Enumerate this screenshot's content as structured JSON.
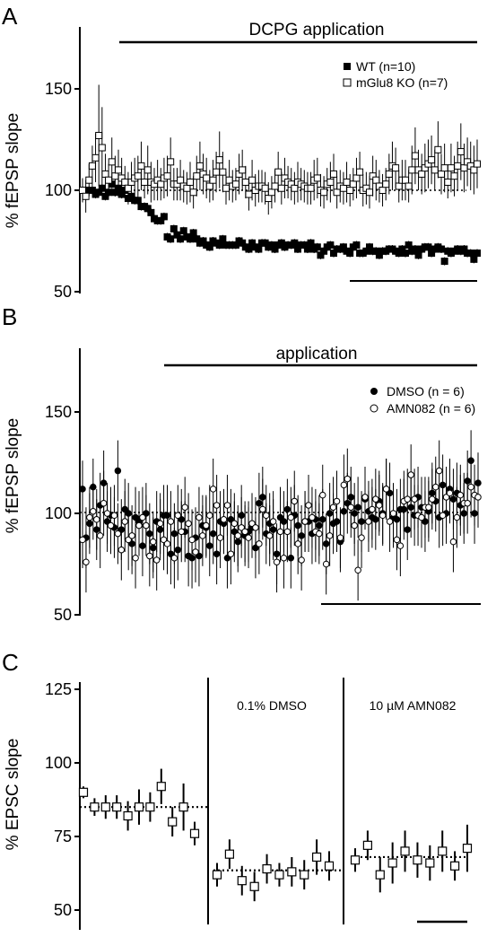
{
  "chart_data": [
    {
      "panel": "A",
      "type": "scatter",
      "ylabel": "% fEPSP slope",
      "ylim": [
        50,
        180
      ],
      "yticks": [
        50,
        100,
        150
      ],
      "annotation": "DCPG application",
      "baseline": 100,
      "legend_placement": "top-right",
      "series": [
        {
          "name": "WT (n=10)",
          "marker": "filled-square",
          "color": "#000000",
          "y": [
            100,
            100,
            100,
            100,
            98,
            99,
            101,
            97,
            99,
            103,
            99,
            101,
            98,
            100,
            96,
            97,
            95,
            95,
            92,
            92,
            91,
            89,
            86,
            85,
            85,
            87,
            77,
            76,
            81,
            78,
            76,
            80,
            77,
            76,
            79,
            76,
            74,
            75,
            73,
            72,
            75,
            74,
            73,
            76,
            73,
            73,
            73,
            73,
            75,
            74,
            72,
            71,
            74,
            72,
            71,
            74,
            74,
            72,
            73,
            71,
            73,
            74,
            72,
            73,
            73,
            74,
            71,
            73,
            73,
            71,
            74,
            71,
            72,
            68,
            70,
            72,
            73,
            69,
            71,
            71,
            72,
            70,
            69,
            72,
            73,
            69,
            69,
            70,
            72,
            70,
            70,
            68,
            70,
            70,
            71,
            71,
            70,
            69,
            71,
            69,
            73,
            70,
            71,
            68,
            71,
            72,
            72,
            69,
            71,
            72,
            71,
            65,
            70,
            69,
            70,
            71,
            70,
            71,
            69,
            69,
            66,
            69
          ],
          "err": [
            2,
            2,
            2,
            2,
            2,
            2,
            2,
            2,
            2,
            2,
            2,
            2,
            2,
            2,
            2,
            2,
            2,
            2,
            2,
            2,
            2,
            2,
            2,
            2,
            2,
            2,
            2,
            2,
            2,
            2,
            2,
            2,
            2,
            2,
            2,
            2,
            2,
            2,
            2,
            2,
            2,
            2,
            2,
            2,
            2,
            2,
            2,
            2,
            2,
            2,
            2,
            2,
            2,
            2,
            2,
            2,
            2,
            2,
            2,
            2,
            2,
            2,
            2,
            2,
            2,
            2,
            2,
            2,
            2,
            2,
            2,
            2,
            2,
            2,
            2,
            2,
            2,
            2,
            2,
            2,
            2,
            2,
            2,
            2,
            2,
            2,
            2,
            2,
            2,
            2,
            2,
            2,
            2,
            2,
            2,
            2,
            2,
            2,
            2,
            2,
            2,
            2,
            2,
            2,
            2,
            2,
            2,
            2,
            2,
            2,
            2,
            2,
            2,
            2,
            2,
            2,
            2,
            2,
            2,
            2,
            2,
            2
          ]
        },
        {
          "name": "mGlu8 KO (n=7)",
          "marker": "open-square",
          "color": "#000000",
          "y": [
            100,
            97,
            105,
            112,
            116,
            127,
            121,
            108,
            105,
            114,
            107,
            110,
            106,
            104,
            101,
            104,
            106,
            107,
            112,
            104,
            110,
            104,
            103,
            105,
            103,
            106,
            107,
            114,
            103,
            103,
            105,
            102,
            101,
            104,
            99,
            107,
            112,
            108,
            106,
            102,
            105,
            109,
            115,
            109,
            101,
            105,
            102,
            103,
            108,
            110,
            104,
            98,
            105,
            100,
            102,
            102,
            101,
            96,
            99,
            102,
            109,
            101,
            106,
            104,
            103,
            101,
            104,
            103,
            102,
            101,
            101,
            105,
            106,
            100,
            99,
            103,
            104,
            108,
            99,
            102,
            101,
            104,
            100,
            103,
            106,
            109,
            100,
            101,
            99,
            107,
            105,
            102,
            100,
            103,
            108,
            112,
            111,
            102,
            105,
            105,
            102,
            110,
            117,
            110,
            108,
            111,
            113,
            115,
            110,
            120,
            108,
            111,
            104,
            111,
            107,
            112,
            119,
            111,
            114,
            112,
            110,
            113
          ],
          "err": [
            6,
            8,
            8,
            10,
            12,
            25,
            20,
            10,
            8,
            12,
            10,
            10,
            10,
            8,
            8,
            10,
            10,
            10,
            12,
            8,
            12,
            10,
            8,
            10,
            8,
            10,
            10,
            12,
            8,
            8,
            10,
            8,
            8,
            10,
            8,
            10,
            12,
            10,
            10,
            8,
            10,
            10,
            14,
            10,
            8,
            10,
            8,
            8,
            10,
            10,
            8,
            8,
            10,
            8,
            8,
            8,
            8,
            8,
            8,
            8,
            10,
            8,
            10,
            8,
            8,
            8,
            10,
            8,
            8,
            8,
            8,
            10,
            10,
            8,
            8,
            8,
            10,
            10,
            8,
            8,
            8,
            10,
            8,
            8,
            10,
            10,
            8,
            8,
            8,
            10,
            10,
            8,
            8,
            8,
            10,
            12,
            10,
            8,
            10,
            10,
            8,
            12,
            14,
            10,
            10,
            12,
            12,
            12,
            10,
            14,
            10,
            12,
            8,
            12,
            10,
            12,
            14,
            12,
            12,
            12,
            12,
            12
          ]
        }
      ]
    },
    {
      "panel": "B",
      "type": "scatter",
      "ylabel": "% fEPSP slope",
      "ylim": [
        50,
        180
      ],
      "yticks": [
        50,
        100,
        150
      ],
      "annotation": "application",
      "baseline": 100,
      "legend_placement": "top-right",
      "series": [
        {
          "name": "DMSO (n = 6)",
          "marker": "filled-circle",
          "color": "#000000",
          "y": [
            112,
            88,
            95,
            113,
            92,
            104,
            115,
            96,
            99,
            93,
            121,
            92,
            102,
            100,
            85,
            98,
            96,
            84,
            100,
            90,
            83,
            96,
            92,
            99,
            99,
            80,
            90,
            82,
            97,
            91,
            79,
            78,
            88,
            79,
            94,
            93,
            84,
            90,
            80,
            96,
            95,
            78,
            97,
            91,
            86,
            99,
            89,
            91,
            93,
            83,
            105,
            108,
            90,
            95,
            92,
            80,
            98,
            96,
            102,
            78,
            99,
            94,
            89,
            96,
            96,
            90,
            97,
            94,
            97,
            85,
            100,
            95,
            96,
            86,
            101,
            105,
            108,
            100,
            103,
            96,
            107,
            101,
            98,
            97,
            106,
            100,
            112,
            110,
            98,
            97,
            102,
            102,
            92,
            103,
            99,
            108,
            103,
            96,
            101,
            110,
            106,
            98,
            114,
            100,
            112,
            107,
            110,
            104,
            100,
            116,
            126,
            100,
            115
          ],
          "err": [
            14,
            15,
            15,
            14,
            15,
            16,
            16,
            15,
            14,
            15,
            15,
            15,
            15,
            15,
            15,
            15,
            15,
            15,
            15,
            15,
            15,
            15,
            15,
            15,
            15,
            15,
            15,
            15,
            15,
            15,
            15,
            15,
            15,
            15,
            15,
            15,
            15,
            15,
            15,
            15,
            15,
            15,
            15,
            15,
            15,
            15,
            15,
            15,
            15,
            15,
            15,
            15,
            15,
            15,
            15,
            15,
            15,
            15,
            15,
            15,
            15,
            15,
            15,
            15,
            15,
            15,
            15,
            15,
            15,
            15,
            15,
            15,
            15,
            15,
            15,
            15,
            15,
            15,
            15,
            15,
            15,
            15,
            15,
            15,
            15,
            15,
            15,
            15,
            15,
            15,
            15,
            15,
            15,
            15,
            15,
            15,
            15,
            15,
            15,
            15,
            15,
            15,
            15,
            15,
            15,
            15,
            15,
            15,
            15,
            15,
            15,
            15,
            15
          ]
        },
        {
          "name": "AMN082 (n = 6)",
          "marker": "open-circle",
          "color": "#000000",
          "y": [
            87,
            76,
            98,
            101,
            97,
            89,
            105,
            100,
            94,
            99,
            90,
            82,
            96,
            87,
            89,
            78,
            94,
            98,
            94,
            79,
            86,
            77,
            95,
            87,
            85,
            96,
            78,
            99,
            91,
            103,
            95,
            87,
            81,
            98,
            89,
            94,
            99,
            112,
            104,
            88,
            97,
            104,
            80,
            95,
            89,
            93,
            91,
            88,
            95,
            93,
            85,
            102,
            99,
            89,
            96,
            76,
            91,
            78,
            91,
            98,
            106,
            85,
            77,
            96,
            104,
            98,
            91,
            90,
            109,
            75,
            89,
            103,
            106,
            88,
            114,
            117,
            103,
            94,
            72,
            88,
            108,
            96,
            102,
            107,
            104,
            99,
            112,
            96,
            100,
            87,
            84,
            106,
            107,
            119,
            107,
            99,
            98,
            103,
            103,
            107,
            113,
            121,
            99,
            108,
            110,
            86,
            98,
            109,
            105,
            105,
            113,
            109,
            108
          ],
          "err": [
            14,
            15,
            15,
            14,
            15,
            16,
            16,
            15,
            14,
            15,
            15,
            15,
            15,
            15,
            15,
            15,
            15,
            15,
            15,
            15,
            15,
            15,
            15,
            15,
            15,
            15,
            15,
            15,
            15,
            15,
            15,
            15,
            15,
            15,
            15,
            15,
            15,
            15,
            15,
            15,
            15,
            15,
            15,
            15,
            15,
            15,
            15,
            15,
            15,
            15,
            15,
            15,
            15,
            15,
            15,
            15,
            15,
            15,
            15,
            15,
            15,
            15,
            15,
            15,
            15,
            15,
            15,
            15,
            15,
            15,
            15,
            15,
            15,
            15,
            15,
            15,
            15,
            15,
            15,
            15,
            15,
            15,
            15,
            15,
            15,
            15,
            15,
            15,
            15,
            15,
            15,
            15,
            15,
            15,
            15,
            15,
            15,
            15,
            15,
            15,
            15,
            15,
            15,
            15,
            15,
            15,
            15,
            15,
            15,
            15,
            15,
            15,
            15
          ]
        }
      ]
    },
    {
      "panel": "C",
      "type": "scatter",
      "ylabel": "% EPSC slope",
      "ylim": [
        45,
        130
      ],
      "yticks": [
        50,
        75,
        100,
        125
      ],
      "segments": [
        {
          "label": "",
          "mean": 85,
          "y": [
            90,
            85,
            85,
            85,
            82,
            85,
            85,
            92,
            80,
            85,
            76
          ],
          "err": [
            2,
            3,
            4,
            4,
            5,
            6,
            5,
            6,
            5,
            8,
            4
          ]
        },
        {
          "label": "0.1% DMSO",
          "mean": 63.5,
          "y": [
            62,
            69,
            60,
            58,
            64,
            62,
            63,
            62,
            68,
            65
          ],
          "err": [
            4,
            5,
            5,
            5,
            5,
            4,
            5,
            5,
            6,
            5
          ]
        },
        {
          "label": "10 µM AMN082",
          "mean": 68,
          "y": [
            67,
            72,
            62,
            66,
            70,
            67,
            66,
            70,
            65,
            71
          ],
          "err": [
            4,
            5,
            6,
            7,
            7,
            6,
            6,
            7,
            5,
            8
          ]
        }
      ]
    }
  ]
}
